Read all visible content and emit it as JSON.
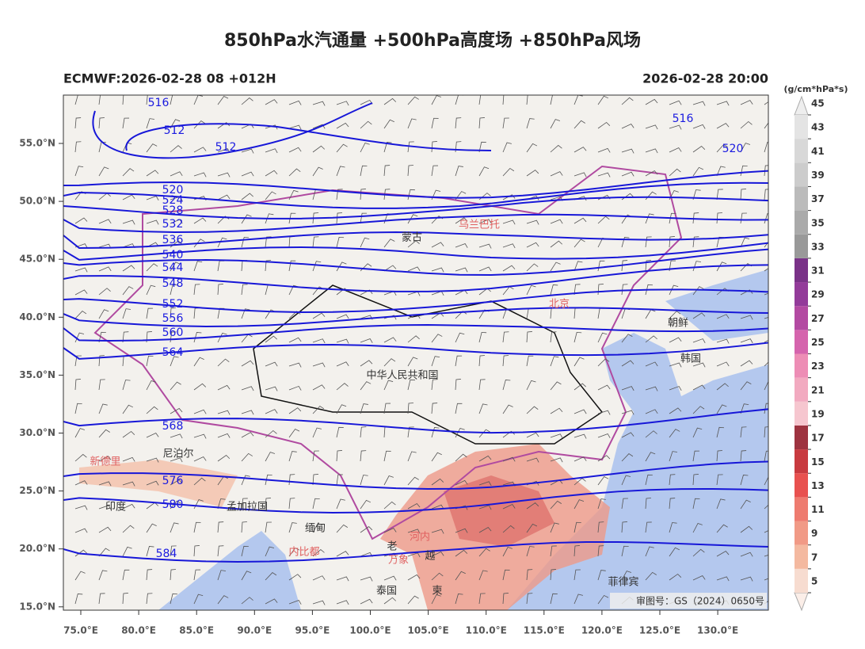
{
  "header": {
    "title": "850hPa水汽通量 +500hPa高度场 +850hPa风场",
    "left": "ECMWF:2026-02-28 08 +012H",
    "right": "2026-02-28 20:00"
  },
  "map": {
    "lat_ticks": [
      {
        "value": 55,
        "label": "55.0°N"
      },
      {
        "value": 50,
        "label": "50.0°N"
      },
      {
        "value": 45,
        "label": "45.0°N"
      },
      {
        "value": 40,
        "label": "40.0°N"
      },
      {
        "value": 35,
        "label": "35.0°N"
      },
      {
        "value": 30,
        "label": "30.0°N"
      },
      {
        "value": 25,
        "label": "25.0°N"
      },
      {
        "value": 20,
        "label": "20.0°N"
      },
      {
        "value": 15,
        "label": "15.0°N"
      }
    ],
    "lon_ticks": [
      {
        "value": 75,
        "label": "75.0°E"
      },
      {
        "value": 80,
        "label": "80.0°E"
      },
      {
        "value": 85,
        "label": "85.0°E"
      },
      {
        "value": 90,
        "label": "90.0°E"
      },
      {
        "value": 95,
        "label": "95.0°E"
      },
      {
        "value": 100,
        "label": "100.0°E"
      },
      {
        "value": 105,
        "label": "105.0°E"
      },
      {
        "value": 110,
        "label": "110.0°E"
      },
      {
        "value": 115,
        "label": "115.0°E"
      },
      {
        "value": 120,
        "label": "120.0°E"
      },
      {
        "value": 125,
        "label": "125.0°E"
      },
      {
        "value": 130,
        "label": "130.0°E"
      }
    ],
    "contour_labels": [
      516,
      512,
      512,
      520,
      524,
      528,
      532,
      536,
      540,
      544,
      548,
      552,
      556,
      560,
      564,
      568,
      576,
      580,
      584,
      516,
      520
    ],
    "places": [
      "蒙古",
      "乌兰巴托",
      "北京",
      "朝鲜",
      "韩国",
      "中华人民共和国",
      "尼泊尔",
      "新德里",
      "印度",
      "孟加拉国",
      "缅甸",
      "内比都",
      "老",
      "越",
      "万象",
      "河内",
      "泰国",
      "柬",
      "菲律宾"
    ],
    "credit": "审图号：GS（2024）0650号"
  },
  "colorbar": {
    "unit": "(g/cm*hPa*s)",
    "ticks": [
      5,
      7,
      9,
      11,
      13,
      15,
      17,
      19,
      21,
      23,
      25,
      27,
      29,
      31,
      33,
      35,
      37,
      39,
      41,
      43,
      45
    ]
  }
}
